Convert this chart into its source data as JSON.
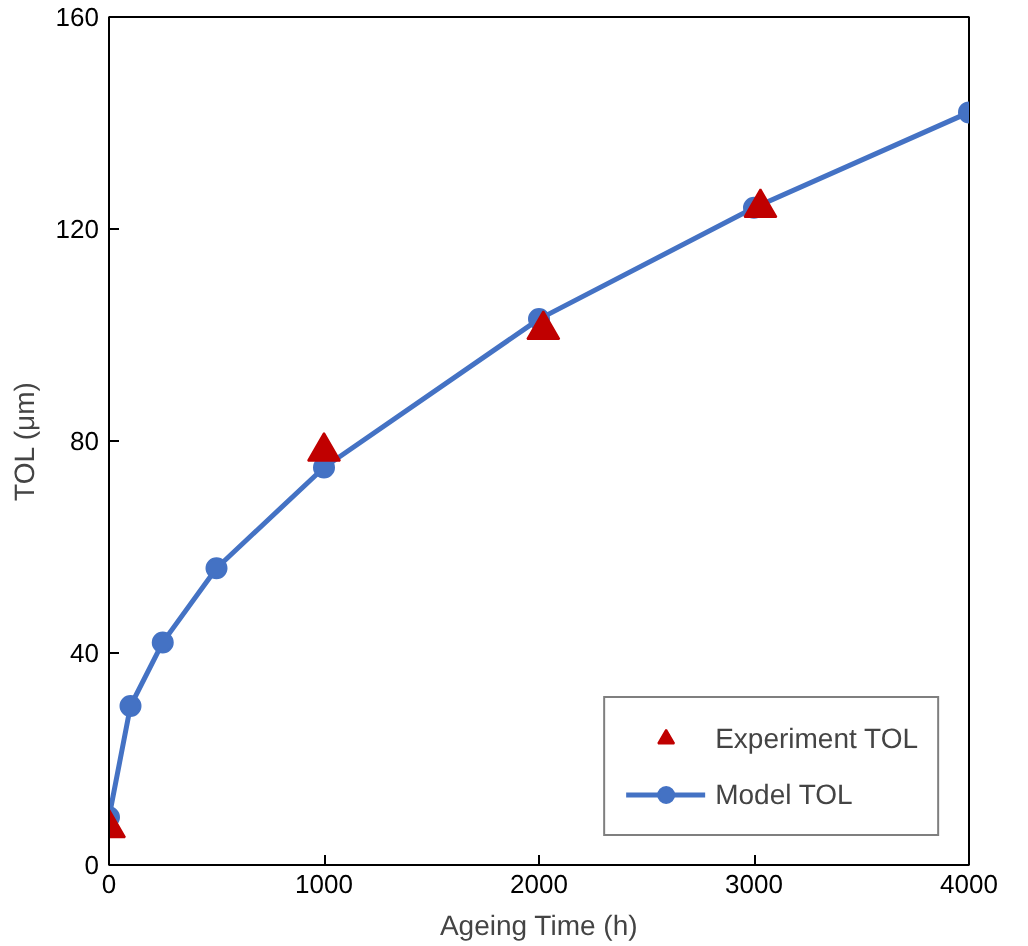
{
  "chart_data": {
    "type": "line",
    "xlabel": "Ageing Time (h)",
    "ylabel": "TOL (μm)",
    "xlim": [
      0,
      4000
    ],
    "xticks": [
      0,
      1000,
      2000,
      3000,
      4000
    ],
    "ylim": [
      0,
      160
    ],
    "yticks": [
      0,
      40,
      80,
      120,
      160
    ],
    "grid": false,
    "legend": "bottom right",
    "series": [
      {
        "name": "Experiment TOL",
        "type": "scatter",
        "marker": "triangle",
        "color": "#c00000",
        "x": [
          0,
          1000,
          2020,
          3030
        ],
        "values": [
          7,
          78,
          101,
          124
        ]
      },
      {
        "name": "Model TOL",
        "marker": "circle",
        "line_style": "solid",
        "color": "#4472c4",
        "x": [
          0,
          100,
          250,
          500,
          1000,
          2000,
          3000,
          4000
        ],
        "values": [
          9,
          30,
          42,
          56,
          75,
          103,
          124,
          142
        ]
      }
    ]
  }
}
